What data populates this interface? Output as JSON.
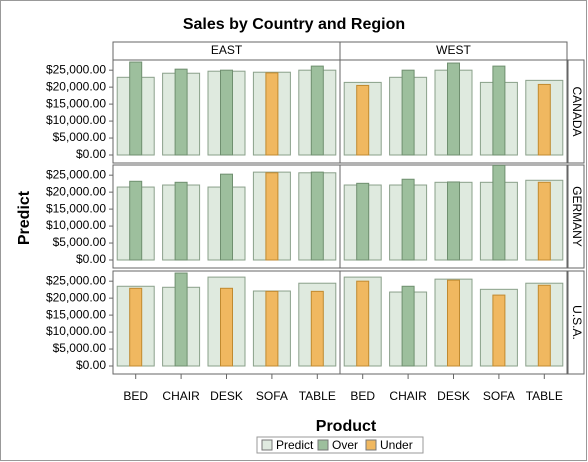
{
  "chart_data": {
    "type": "bar",
    "title": "Sales by Country and Region",
    "x_label": "Product",
    "y_label": "Predict",
    "columns": [
      "EAST",
      "WEST"
    ],
    "rows": [
      "CANADA",
      "GERMANY",
      "U.S.A."
    ],
    "categories": [
      "BED",
      "CHAIR",
      "DESK",
      "SOFA",
      "TABLE"
    ],
    "ylim": [
      0,
      28000
    ],
    "yticks": [
      {
        "value": 0,
        "label": "$0.00"
      },
      {
        "value": 5000,
        "label": "$5,000.00"
      },
      {
        "value": 10000,
        "label": "$10,000.00"
      },
      {
        "value": 15000,
        "label": "$15,000.00"
      },
      {
        "value": 20000,
        "label": "$20,000.00"
      },
      {
        "value": 25000,
        "label": "$25,000.00"
      }
    ],
    "legend": [
      {
        "name": "Predict",
        "color": "#dfeadf"
      },
      {
        "name": "Over",
        "color": "#9dbf9d"
      },
      {
        "name": "Under",
        "color": "#f0b860"
      }
    ],
    "panels": [
      [
        {
          "predict": [
            22900,
            24100,
            24700,
            24400,
            25000
          ],
          "actual": [
            27400,
            25300,
            25000,
            24200,
            26200
          ]
        },
        {
          "predict": [
            21400,
            22900,
            25000,
            21400,
            22000
          ],
          "actual": [
            20500,
            25000,
            27100,
            26200,
            20800
          ]
        }
      ],
      [
        {
          "predict": [
            21500,
            22100,
            21500,
            25900,
            25700
          ],
          "actual": [
            23200,
            22900,
            25300,
            25700,
            25900
          ]
        },
        {
          "predict": [
            22100,
            22100,
            22900,
            22900,
            23500
          ],
          "actual": [
            22600,
            23800,
            23000,
            27900,
            22900
          ]
        }
      ],
      [
        {
          "predict": [
            23500,
            23200,
            26200,
            22100,
            24400
          ],
          "actual": [
            22900,
            27400,
            22900,
            22000,
            22000
          ]
        },
        {
          "predict": [
            26200,
            21800,
            25600,
            22600,
            24400
          ],
          "actual": [
            25000,
            23500,
            25300,
            20900,
            23800
          ]
        }
      ]
    ]
  }
}
